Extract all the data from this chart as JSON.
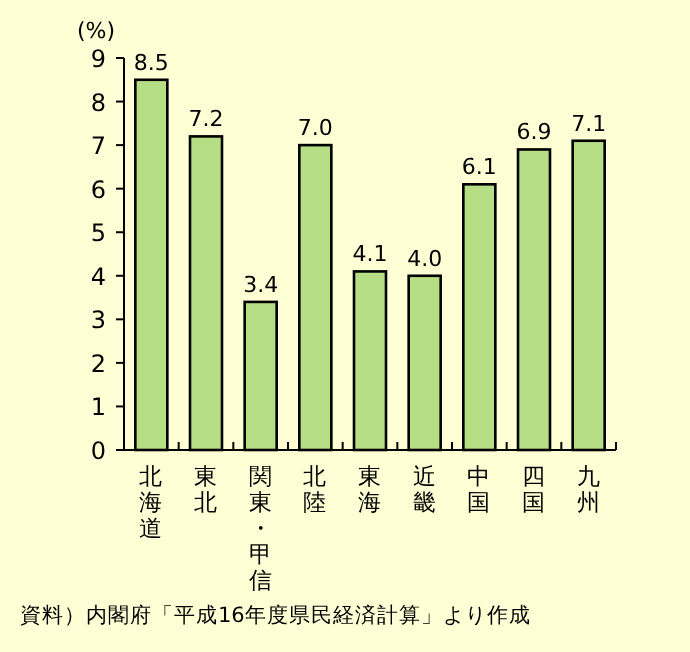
{
  "chart_data": {
    "type": "bar",
    "ylabel": "(%)",
    "categories": [
      "北海道",
      "東北",
      "関東・甲信",
      "北陸",
      "東海",
      "近畿",
      "中国",
      "四国",
      "九州"
    ],
    "values": [
      8.5,
      7.2,
      3.4,
      7.0,
      4.1,
      4.0,
      6.1,
      6.9,
      7.1
    ],
    "value_labels": [
      "8.5",
      "7.2",
      "3.4",
      "7.0",
      "4.1",
      "4.0",
      "6.1",
      "6.9",
      "7.1"
    ],
    "color": "#b5de85",
    "ylim": [
      0,
      9
    ],
    "yticks": [
      0,
      1,
      2,
      3,
      4,
      5,
      6,
      7,
      8,
      9
    ],
    "grid": false,
    "annotations": [
      "資料）内閣府「平成16年度県民経済計算」より作成"
    ]
  }
}
